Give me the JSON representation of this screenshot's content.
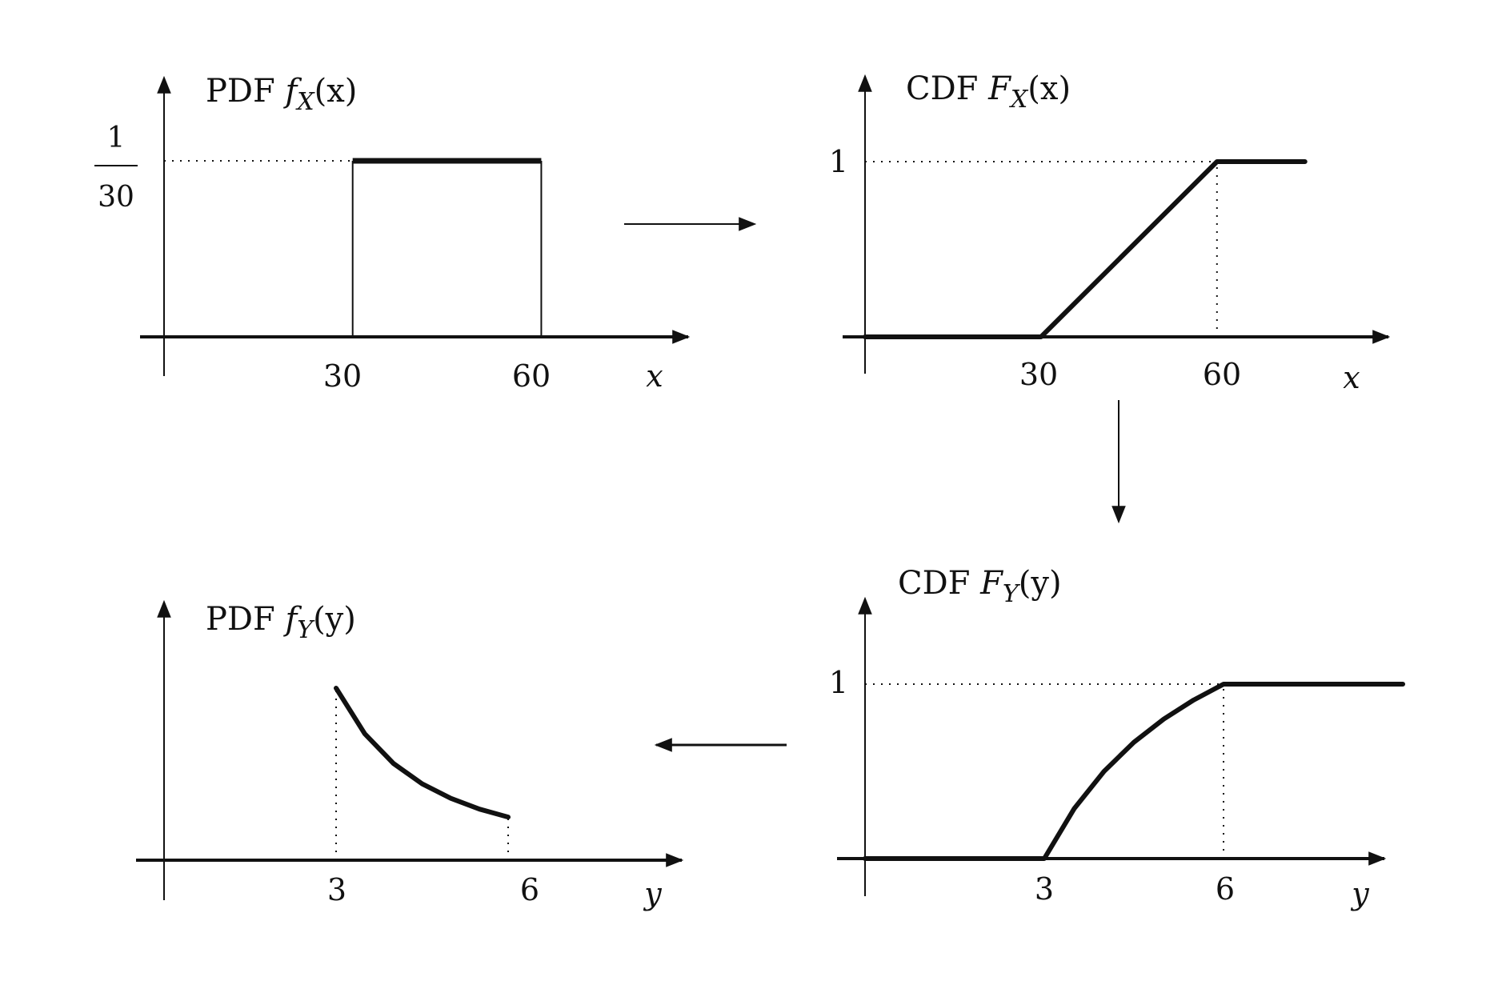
{
  "colors": {
    "ink": "#111111",
    "background": "#ffffff"
  },
  "chart_data": [
    {
      "id": "pdf_x",
      "type": "line",
      "title": {
        "prefix": "PDF ",
        "fn": "f",
        "sub": "X",
        "arg": "(x)"
      },
      "xlabel": "x",
      "xlim": [
        0,
        75
      ],
      "ylim": [
        0,
        0.04
      ],
      "x_ticks": [
        "30",
        "60"
      ],
      "y_tick_fraction": {
        "numerator": "1",
        "denominator": "30"
      },
      "series": [
        {
          "x": [
            0,
            30,
            30,
            60,
            60,
            75
          ],
          "y": [
            0,
            0,
            0.0333,
            0.0333,
            0,
            0
          ]
        }
      ],
      "reference_lines": [
        {
          "type": "horizontal",
          "y": 0.0333,
          "x_from": 0,
          "x_to": 30,
          "style": "dotted"
        }
      ]
    },
    {
      "id": "cdf_x",
      "type": "line",
      "title": {
        "prefix": "CDF ",
        "fn": "F",
        "sub": "X",
        "arg": "(x)"
      },
      "xlabel": "x",
      "xlim": [
        0,
        75
      ],
      "ylim": [
        0,
        1.2
      ],
      "x_ticks": [
        "30",
        "60"
      ],
      "y_ticks": [
        "1"
      ],
      "series": [
        {
          "x": [
            0,
            30,
            60,
            75
          ],
          "y": [
            0,
            0,
            1,
            1
          ]
        }
      ],
      "reference_lines": [
        {
          "type": "horizontal",
          "y": 1,
          "x_from": 0,
          "x_to": 60,
          "style": "dotted"
        },
        {
          "type": "vertical",
          "x": 60,
          "y_from": 0,
          "y_to": 1,
          "style": "dotted"
        }
      ]
    },
    {
      "id": "cdf_y",
      "type": "line",
      "title": {
        "prefix": "CDF ",
        "fn": "F",
        "sub": "Y",
        "arg": "(y)"
      },
      "xlabel": "y",
      "xlim": [
        0,
        9
      ],
      "ylim": [
        0,
        1.2
      ],
      "x_ticks": [
        "3",
        "6"
      ],
      "y_ticks": [
        "1"
      ],
      "series": [
        {
          "x": [
            0,
            3,
            3.5,
            4,
            4.5,
            5,
            5.5,
            6,
            9
          ],
          "y": [
            0,
            0,
            0.286,
            0.5,
            0.667,
            0.8,
            0.909,
            1,
            1
          ]
        }
      ],
      "reference_lines": [
        {
          "type": "horizontal",
          "y": 1,
          "x_from": 0,
          "x_to": 6,
          "style": "dotted"
        },
        {
          "type": "vertical",
          "x": 6,
          "y_from": 0,
          "y_to": 1,
          "style": "dotted"
        }
      ]
    },
    {
      "id": "pdf_y",
      "type": "line",
      "title": {
        "prefix": "PDF ",
        "fn": "f",
        "sub": "Y",
        "arg": "(y)"
      },
      "xlabel": "y",
      "xlim": [
        0,
        9
      ],
      "ylim": [
        0,
        0.8
      ],
      "x_ticks": [
        "3",
        "6"
      ],
      "series": [
        {
          "x": [
            3,
            3.5,
            4,
            4.5,
            5,
            5.5,
            6
          ],
          "y": [
            0.667,
            0.49,
            0.375,
            0.296,
            0.24,
            0.198,
            0.167
          ]
        }
      ],
      "reference_lines": [
        {
          "type": "vertical",
          "x": 3,
          "y_from": 0,
          "y_to": 0.667,
          "style": "dotted"
        },
        {
          "type": "vertical",
          "x": 6,
          "y_from": 0,
          "y_to": 0.167,
          "style": "dotted"
        }
      ]
    }
  ],
  "flow_arrows": [
    {
      "from": "pdf_x",
      "to": "cdf_x"
    },
    {
      "from": "cdf_x",
      "to": "cdf_y"
    },
    {
      "from": "cdf_y",
      "to": "pdf_y"
    }
  ]
}
